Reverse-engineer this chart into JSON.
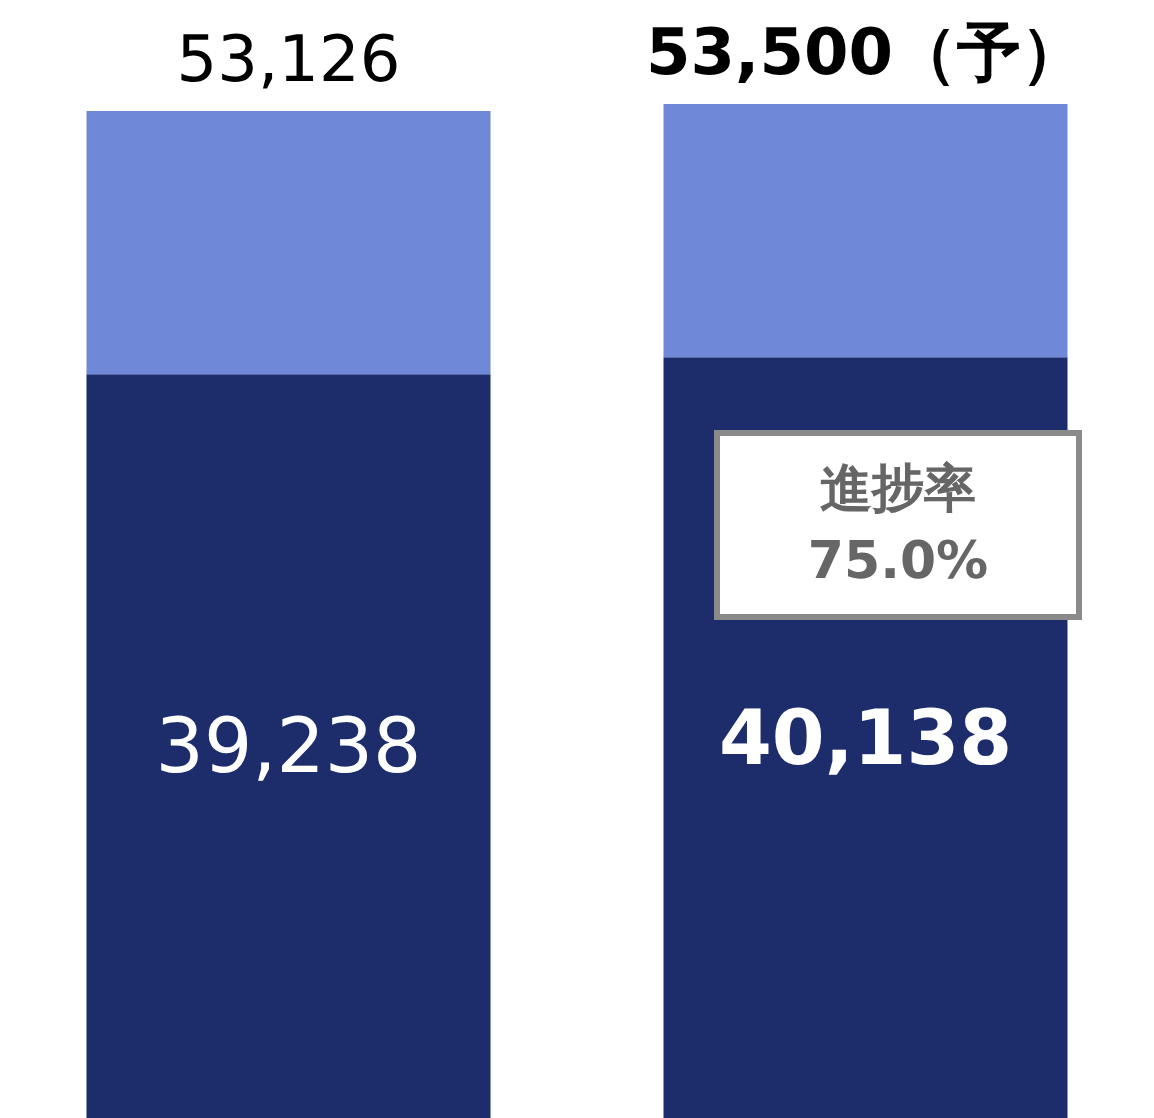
{
  "chart_data": {
    "type": "bar",
    "stacked": true,
    "categories": [
      null,
      null
    ],
    "series": [
      {
        "color": "#1d2c6b",
        "values": [
          39238,
          40138
        ],
        "value_labels": [
          "39,238",
          "40,138"
        ]
      },
      {
        "color": "#7088d8",
        "values": [
          13888,
          13362
        ]
      }
    ],
    "totals": [
      "53,126",
      "53,500（予）"
    ],
    "annotations": [
      "進捗率\n75.0%"
    ],
    "tick_labels": false,
    "grid": false
  }
}
